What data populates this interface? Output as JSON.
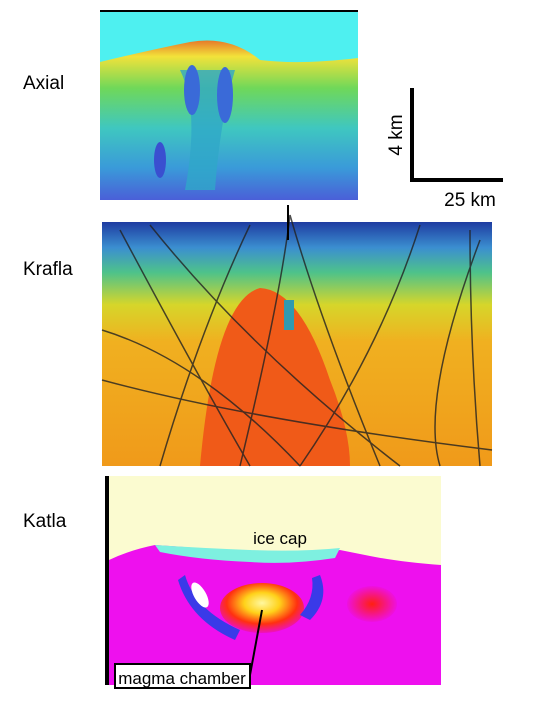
{
  "panels": [
    {
      "label": "Axial"
    },
    {
      "label": "Krafla"
    },
    {
      "label": "Katla"
    }
  ],
  "scale_bar": {
    "vertical": "4 km",
    "horizontal": "25 km"
  },
  "annotations": {
    "ice_cap": "ice cap",
    "magma_chamber": "magma chamber"
  }
}
